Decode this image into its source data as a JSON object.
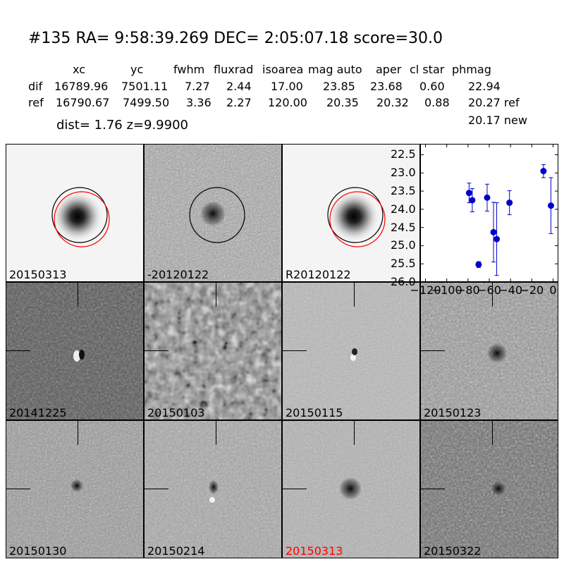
{
  "header": {
    "title": "#135   RA= 9:58:39.269 DEC= 2:05:07.18       score=30.0",
    "columns": [
      "xc",
      "yc",
      "fwhm",
      "fluxrad",
      "isoarea",
      "mag auto",
      "aper",
      "cl star",
      "phmag"
    ],
    "rows": [
      {
        "label": "dif",
        "values": [
          "16789.96",
          "7501.11",
          "7.27",
          "2.44",
          "17.00",
          "23.85",
          "23.68",
          "0.60",
          "22.94"
        ]
      },
      {
        "label": "ref",
        "values": [
          "16790.67",
          "7499.50",
          "3.36",
          "2.27",
          "120.00",
          "20.35",
          "20.32",
          "0.88",
          "20.27 ref"
        ]
      }
    ],
    "dist_line": "dist=  1.76       z=9.9900",
    "new_mag": "20.17 new"
  },
  "top_panels": [
    {
      "label": "20150313",
      "style": "star",
      "circles": [
        "black",
        "red"
      ]
    },
    {
      "label": "-20120122",
      "style": "noise_diff",
      "circles": [
        "black"
      ]
    },
    {
      "label": "R20120122",
      "style": "star",
      "circles": [
        "black",
        "red"
      ]
    }
  ],
  "stamps": [
    {
      "label": "20141225",
      "tone": "dark",
      "highlight": false
    },
    {
      "label": "20150103",
      "tone": "worm",
      "highlight": false
    },
    {
      "label": "20150115",
      "tone": "light",
      "highlight": false
    },
    {
      "label": "20150123",
      "tone": "mid",
      "highlight": false
    },
    {
      "label": "20150130",
      "tone": "mid",
      "highlight": false
    },
    {
      "label": "20150214",
      "tone": "mid",
      "highlight": false
    },
    {
      "label": "20150313",
      "tone": "light",
      "highlight": true
    },
    {
      "label": "20150322",
      "tone": "dark",
      "highlight": false
    }
  ],
  "colors": {
    "highlight_label": "#ff0000",
    "points": "#0000cc",
    "circle_ref": "#ff0000",
    "circle_dif": "#000000"
  },
  "chart_data": {
    "type": "scatter",
    "title": "",
    "xlabel": "",
    "ylabel": "",
    "xlim": [
      -125,
      5
    ],
    "ylim": [
      26.0,
      22.2
    ],
    "y_inverted": true,
    "xticks": [
      -120,
      -100,
      -80,
      -60,
      -40,
      -20,
      0
    ],
    "xtick_labels": [
      "−120",
      "−100",
      "−80",
      "−60",
      "−40",
      "−20",
      "0"
    ],
    "yticks": [
      22.5,
      23.0,
      23.5,
      24.0,
      24.5,
      25.0,
      25.5,
      26.0
    ],
    "ytick_labels": [
      "22.5",
      "23.0",
      "23.5",
      "24.0",
      "24.5",
      "25.0",
      "25.5",
      "26.0"
    ],
    "grid": false,
    "series": [
      {
        "points": [
          {
            "x": -79,
            "y": 23.55,
            "err": 0.27
          },
          {
            "x": -76,
            "y": 23.75,
            "err": 0.32
          },
          {
            "x": -70,
            "y": 25.52,
            "err": 0.08
          },
          {
            "x": -62,
            "y": 23.68,
            "err": 0.37
          },
          {
            "x": -56,
            "y": 24.63,
            "err": 0.82
          },
          {
            "x": -53,
            "y": 24.82,
            "err": 1.0
          },
          {
            "x": -41,
            "y": 23.82,
            "err": 0.33
          },
          {
            "x": -9,
            "y": 22.95,
            "err": 0.18
          },
          {
            "x": -2,
            "y": 23.9,
            "err": 0.77
          }
        ]
      }
    ]
  }
}
